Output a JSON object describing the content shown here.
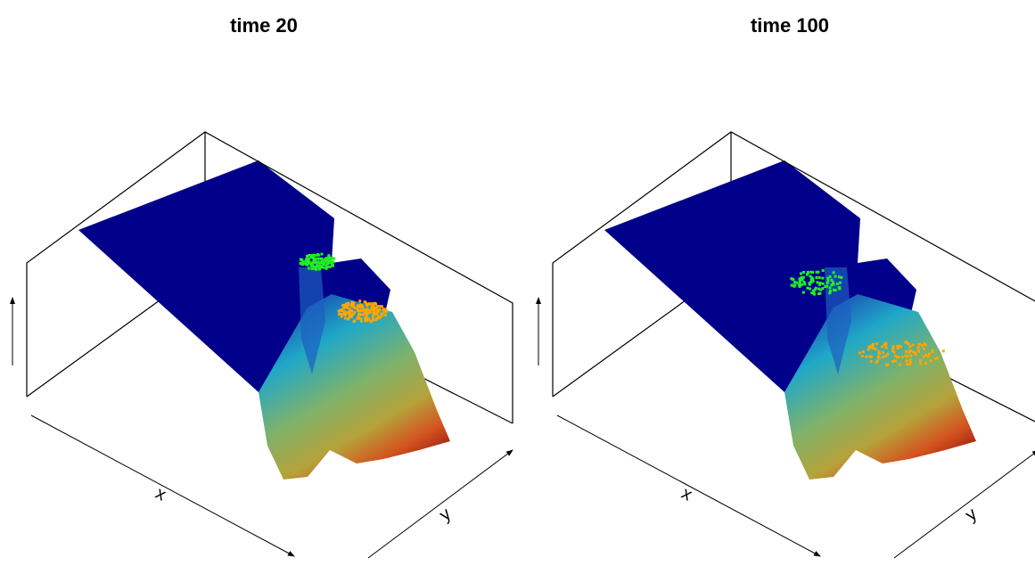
{
  "chart_data": [
    {
      "type": "surface",
      "title": "time  20",
      "xlabel": "x",
      "ylabel": "y"
    },
    {
      "type": "surface",
      "title": "time  100",
      "xlabel": "x",
      "ylabel": "y"
    }
  ]
}
